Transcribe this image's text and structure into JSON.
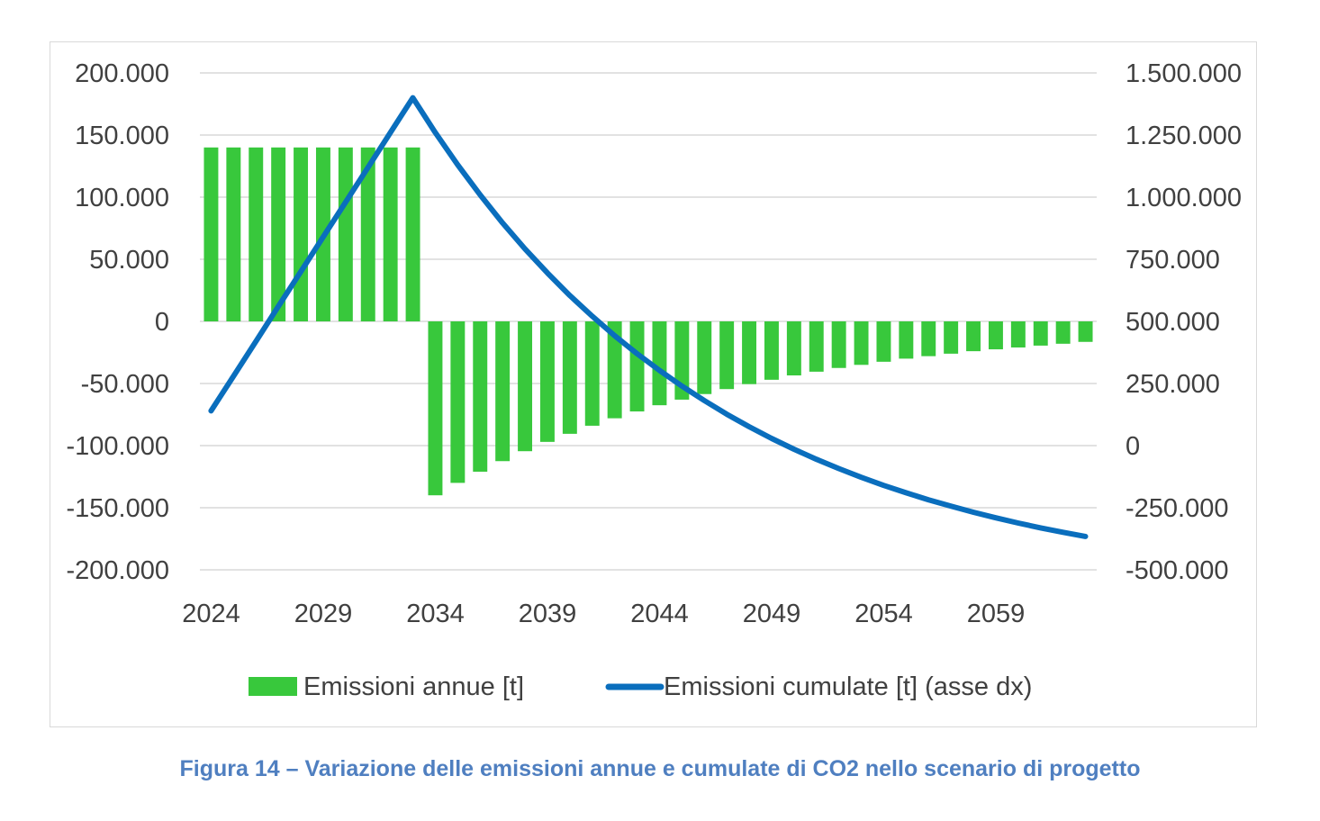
{
  "chart_data": {
    "type": "bar+line",
    "title": "",
    "x": [
      2024,
      2025,
      2026,
      2027,
      2028,
      2029,
      2030,
      2031,
      2032,
      2033,
      2034,
      2035,
      2036,
      2037,
      2038,
      2039,
      2040,
      2041,
      2042,
      2043,
      2044,
      2045,
      2046,
      2047,
      2048,
      2049,
      2050,
      2051,
      2052,
      2053,
      2054,
      2055,
      2056,
      2057,
      2058,
      2059,
      2060,
      2061,
      2062,
      2063
    ],
    "x_tick_labels": [
      "2024",
      "2029",
      "2034",
      "2039",
      "2044",
      "2049",
      "2054",
      "2059"
    ],
    "series": [
      {
        "name": "Emissioni annue [t]",
        "type": "bar",
        "axis": "left",
        "color": "#38c83c",
        "values": [
          140000,
          140000,
          140000,
          140000,
          140000,
          140000,
          140000,
          140000,
          140000,
          140000,
          -140000,
          -130000,
          -121000,
          -112500,
          -104500,
          -97000,
          -90500,
          -84000,
          -78000,
          -72500,
          -67500,
          -63000,
          -58500,
          -54500,
          -50500,
          -47000,
          -43500,
          -40500,
          -37500,
          -35000,
          -32500,
          -30000,
          -28000,
          -26000,
          -24000,
          -22500,
          -21000,
          -19500,
          -18000,
          -16500
        ]
      },
      {
        "name": "Emissioni cumulate [t] (asse dx)",
        "type": "line",
        "axis": "right",
        "color": "#0a6ebd",
        "values": [
          140000,
          280000,
          420000,
          560000,
          700000,
          840000,
          980000,
          1120000,
          1260000,
          1400000,
          1260000,
          1130000,
          1009000,
          896500,
          792000,
          695000,
          604500,
          520500,
          442500,
          370000,
          302500,
          239500,
          181000,
          126500,
          76000,
          29000,
          -14500,
          -55000,
          -92500,
          -127500,
          -160000,
          -190000,
          -218000,
          -244000,
          -268000,
          -290500,
          -311500,
          -331000,
          -349000,
          -365500
        ]
      }
    ],
    "y_left": {
      "range": [
        -200000,
        200000
      ],
      "tick_labels": [
        "200.000",
        "150.000",
        "100.000",
        "50.000",
        "0",
        "-50.000",
        "-100.000",
        "-150.000",
        "-200.000"
      ]
    },
    "y_right": {
      "range": [
        -500000,
        1500000
      ],
      "tick_labels": [
        "1.500.000",
        "1.250.000",
        "1.000.000",
        "750.000",
        "500.000",
        "250.000",
        "0",
        "-250.000",
        "-500.000"
      ]
    },
    "grid": "horizontal",
    "legend": "bottom"
  },
  "caption": "Figura 14 – Variazione delle emissioni annue e cumulate di CO2 nello scenario di progetto"
}
